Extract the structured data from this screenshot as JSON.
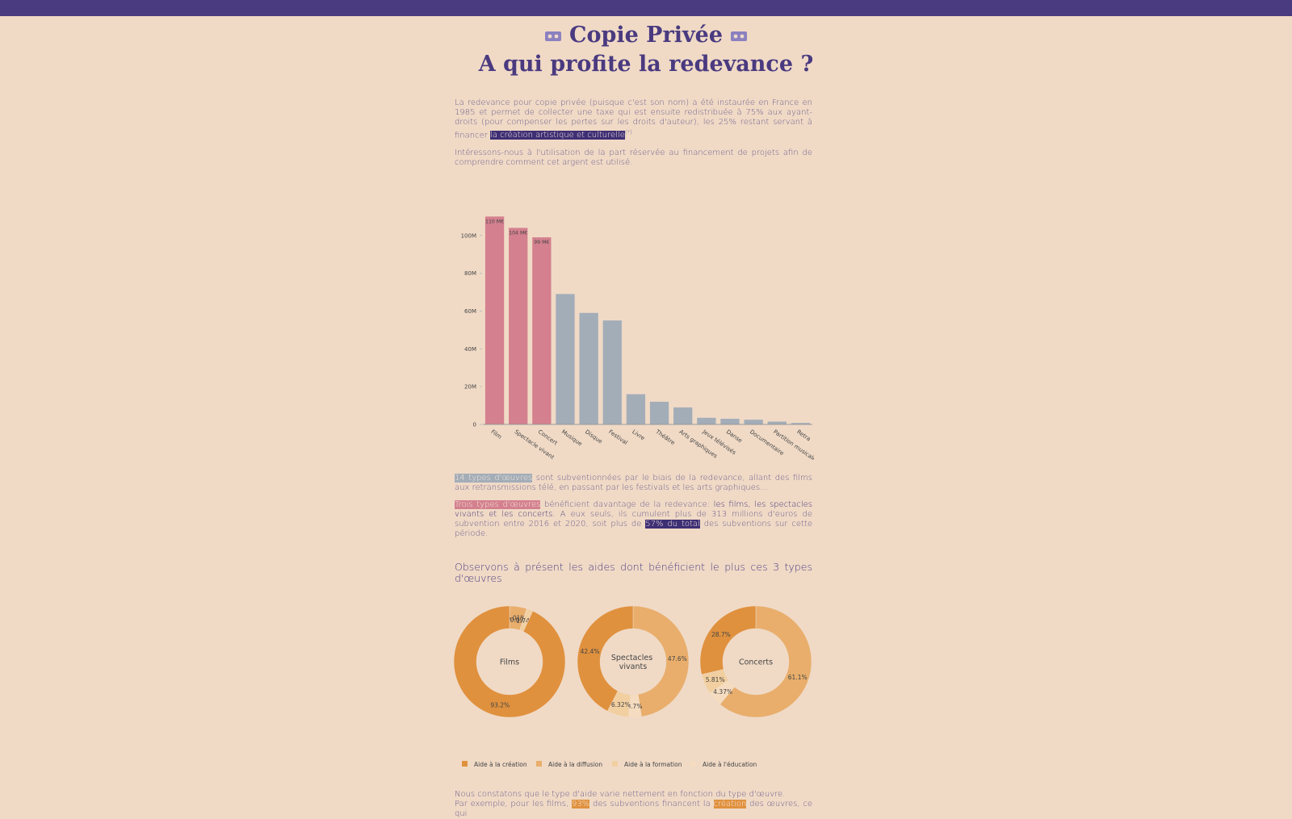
{
  "header": {
    "title": "Copie Privée",
    "subtitle": "A qui profite la redevance ?"
  },
  "paragraphs": [
    {
      "segments": [
        {
          "text": "La redevance pour copie privée (puisque c'est son nom) a été instaurée en France en 1985 et permet de collecter une taxe qui est ensuite redistribuée à 75% aux ayant-droits (pour compenser les pertes sur les droits d'auteur), les 25% restant servant à financer ",
          "style": "plain"
        },
        {
          "text": "la création artistique et culturelle",
          "style": "hl-dark"
        },
        {
          "text": "(*)",
          "style": "sup"
        }
      ]
    },
    {
      "segments": [
        {
          "text": "Intéressons-nous à l'utilisation de la part réservée au financement de projets afin de comprendre comment cet argent est utilisé.",
          "style": "plain"
        }
      ]
    },
    {
      "segments": [
        {
          "text": "14 types d'œuvres",
          "style": "hl-gray"
        },
        {
          "text": " sont subventionnées par le biais de la redevance, allant des films aux retransmissions télé, en passant par les festivals et les arts graphiques...",
          "style": "plain"
        }
      ]
    },
    {
      "segments": [
        {
          "text": "Trois types d'œuvres",
          "style": "hl-pink"
        },
        {
          "text": " bénéficient davantage de la redevance: ",
          "style": "plain"
        },
        {
          "text": "les films, les spectacles vivants et les concerts",
          "style": "bold"
        },
        {
          "text": ". A eux seuls, ils cumulent plus de 313 millions d'euros de subvention entre 2016 et 2020, soit plus de ",
          "style": "plain"
        },
        {
          "text": "57% du total",
          "style": "hl-dark"
        },
        {
          "text": " des subventions sur cette période.",
          "style": "plain"
        }
      ]
    },
    {
      "segments": [
        {
          "text": "Observons à présent les aides dont bénéficient le plus ces 3 types d'œuvres",
          "style": "heading"
        }
      ]
    },
    {
      "segments": [
        {
          "text": "Nous constatons que le type d'aide varie nettement en fonction du type d'œuvre.",
          "style": "line"
        },
        {
          "text": "Par exemple, pour les films, ",
          "style": "plain"
        },
        {
          "text": "93%",
          "style": "hl-orange"
        },
        {
          "text": " des subventions financent la ",
          "style": "plain"
        },
        {
          "text": "création",
          "style": "hl-orange"
        },
        {
          "text": " des œuvres, ce qui",
          "style": "plain"
        }
      ]
    }
  ],
  "chart_data": [
    {
      "type": "bar",
      "categories": [
        "Film",
        "Spectacle vivant",
        "Concert",
        "Musique",
        "Disque",
        "Festival",
        "Livre",
        "Théâtre",
        "Arts graphiques",
        "Jeux télévisés",
        "Danse",
        "Documentaire",
        "Partition musicale",
        "Retra"
      ],
      "values": [
        110000000,
        104000000,
        99000000,
        69000000,
        59000000,
        55000000,
        16000000,
        12000000,
        9000000,
        3500000,
        3000000,
        2500000,
        1500000,
        800000
      ],
      "value_labels": [
        "110 M€",
        "104 M€",
        "99 M€",
        null,
        null,
        null,
        null,
        null,
        null,
        null,
        null,
        null,
        null,
        null
      ],
      "colors": [
        "#d4808f",
        "#d4808f",
        "#d4808f",
        "#a3adb8",
        "#a3adb8",
        "#a3adb8",
        "#a3adb8",
        "#a3adb8",
        "#a3adb8",
        "#a3adb8",
        "#a3adb8",
        "#a3adb8",
        "#a3adb8",
        "#a3adb8"
      ],
      "ylim": [
        0,
        111000000
      ],
      "yticks": [
        0,
        {
          "value": 20000000,
          "label": "20M"
        },
        {
          "value": 40000000,
          "label": "40M"
        },
        {
          "value": 60000000,
          "label": "60M"
        },
        {
          "value": 80000000,
          "label": "80M"
        },
        {
          "value": 100000000,
          "label": "100M"
        }
      ]
    },
    {
      "type": "donut",
      "categories": [
        "Aide à la création",
        "Aide à la diffusion",
        "Aide à la formation",
        "Aide à l'éducation"
      ],
      "colors": [
        "#e0913e",
        "#e9ae6c",
        "#f2cfa0",
        "#f5dcc0"
      ],
      "pies": [
        {
          "label": "Films",
          "values": [
            93.2,
            5.01,
            1.74,
            0.0995
          ],
          "value_labels": [
            "93.2%",
            "5.01%",
            "1.74%",
            "0.0995%"
          ]
        },
        {
          "label": "Spectacles vivants",
          "values": [
            42.4,
            47.6,
            6.32,
            3.7
          ],
          "value_labels": [
            "42.4%",
            "47.6%",
            "6.32%",
            "3.7%"
          ]
        },
        {
          "label": "Concerts",
          "values": [
            28.7,
            61.1,
            5.81,
            4.37
          ],
          "value_labels": [
            "28.7%",
            "61.1%",
            "5.81%",
            "4.37%"
          ]
        }
      ]
    }
  ]
}
